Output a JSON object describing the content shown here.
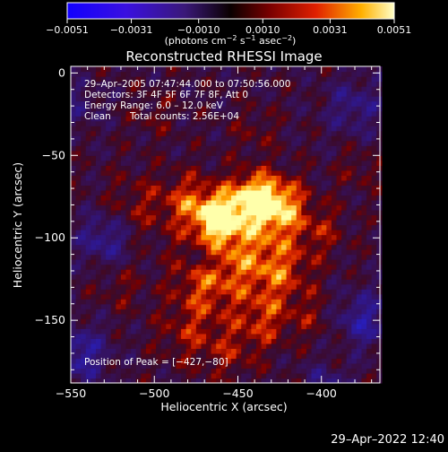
{
  "chart_data": {
    "type": "heatmap",
    "title": "Reconstructed RHESSI Image",
    "xlabel": "Heliocentric X (arcsec)",
    "ylabel": "Heliocentric Y (arcsec)",
    "xlim": [
      -550,
      -365
    ],
    "ylim": [
      -188,
      4
    ],
    "x_ticks": [
      -550,
      -500,
      -450,
      -400
    ],
    "x_tick_labels": [
      "−550",
      "−500",
      "−450",
      "−400"
    ],
    "y_ticks": [
      0,
      -50,
      -100,
      -150
    ],
    "y_tick_labels": [
      "0",
      "−50",
      "−100",
      "−150"
    ],
    "colorbar": {
      "range": [
        -0.0051,
        0.0051
      ],
      "ticks": [
        -0.0051,
        -0.0031,
        -0.001,
        0.001,
        0.0031,
        0.0051
      ],
      "tick_labels": [
        "−0.0051",
        "−0.0031",
        "−0.0010",
        "0.0010",
        "0.0031",
        "0.0051"
      ],
      "unit_parts": [
        "(photons cm",
        "−2",
        " s",
        "−1",
        " asec",
        "−2",
        ")"
      ]
    },
    "annotations": [
      "29–Apr–2005 07:47:44.000 to 07:50:56.000",
      "Detectors: 3F 4F 5F 6F 7F 8F, Att 0",
      "Energy Range: 6.0 – 12.0 keV",
      "Clean",
      "Total counts: 2.56E+04"
    ],
    "peak_label": "Position of Peak = [−427,−80]",
    "peak_position": [
      -427,
      -80
    ],
    "emission_sources": [
      {
        "x": -427,
        "y": -80,
        "peak": 0.005,
        "sigma": 12
      },
      {
        "x": -461,
        "y": -88,
        "peak": 0.0046,
        "sigma": 9
      },
      {
        "x": -443,
        "y": -74,
        "peak": 0.0035,
        "sigma": 10
      },
      {
        "x": -478,
        "y": -78,
        "peak": 0.0028,
        "sigma": 12
      },
      {
        "x": -452,
        "y": -105,
        "peak": 0.003,
        "sigma": 20
      },
      {
        "x": -425,
        "y": -120,
        "peak": 0.0026,
        "sigma": 14
      },
      {
        "x": -470,
        "y": -130,
        "peak": 0.0022,
        "sigma": 14
      },
      {
        "x": -435,
        "y": -150,
        "peak": 0.0024,
        "sigma": 12
      },
      {
        "x": -480,
        "y": -158,
        "peak": 0.0018,
        "sigma": 13
      },
      {
        "x": -455,
        "y": -170,
        "peak": 0.0016,
        "sigma": 12
      },
      {
        "x": -510,
        "y": -80,
        "peak": 0.0016,
        "sigma": 14
      },
      {
        "x": -520,
        "y": -130,
        "peak": 0.0012,
        "sigma": 10
      },
      {
        "x": -400,
        "y": -95,
        "peak": 0.0017,
        "sigma": 11
      },
      {
        "x": -405,
        "y": -148,
        "peak": 0.0013,
        "sigma": 10
      },
      {
        "x": -500,
        "y": -25,
        "peak": 0.001,
        "sigma": 10
      },
      {
        "x": -440,
        "y": -35,
        "peak": 0.0011,
        "sigma": 10
      },
      {
        "x": -378,
        "y": -58,
        "peak": 0.0012,
        "sigma": 9
      },
      {
        "x": -390,
        "y": -172,
        "peak": 0.001,
        "sigma": 8
      },
      {
        "x": -470,
        "y": -112,
        "peak": -0.002,
        "sigma": 6
      },
      {
        "x": -530,
        "y": -100,
        "peak": -0.0028,
        "sigma": 11
      },
      {
        "x": -545,
        "y": -170,
        "peak": -0.0032,
        "sigma": 12
      },
      {
        "x": -375,
        "y": -150,
        "peak": -0.003,
        "sigma": 12
      },
      {
        "x": -380,
        "y": -20,
        "peak": -0.0022,
        "sigma": 12
      },
      {
        "x": -545,
        "y": -20,
        "peak": -0.0015,
        "sigma": 10
      },
      {
        "x": -395,
        "y": -185,
        "peak": -0.002,
        "sigma": 10
      }
    ],
    "noise_amplitude": 0.0012,
    "grid": false
  },
  "footer": {
    "timestamp": "29–Apr–2022 12:40"
  }
}
